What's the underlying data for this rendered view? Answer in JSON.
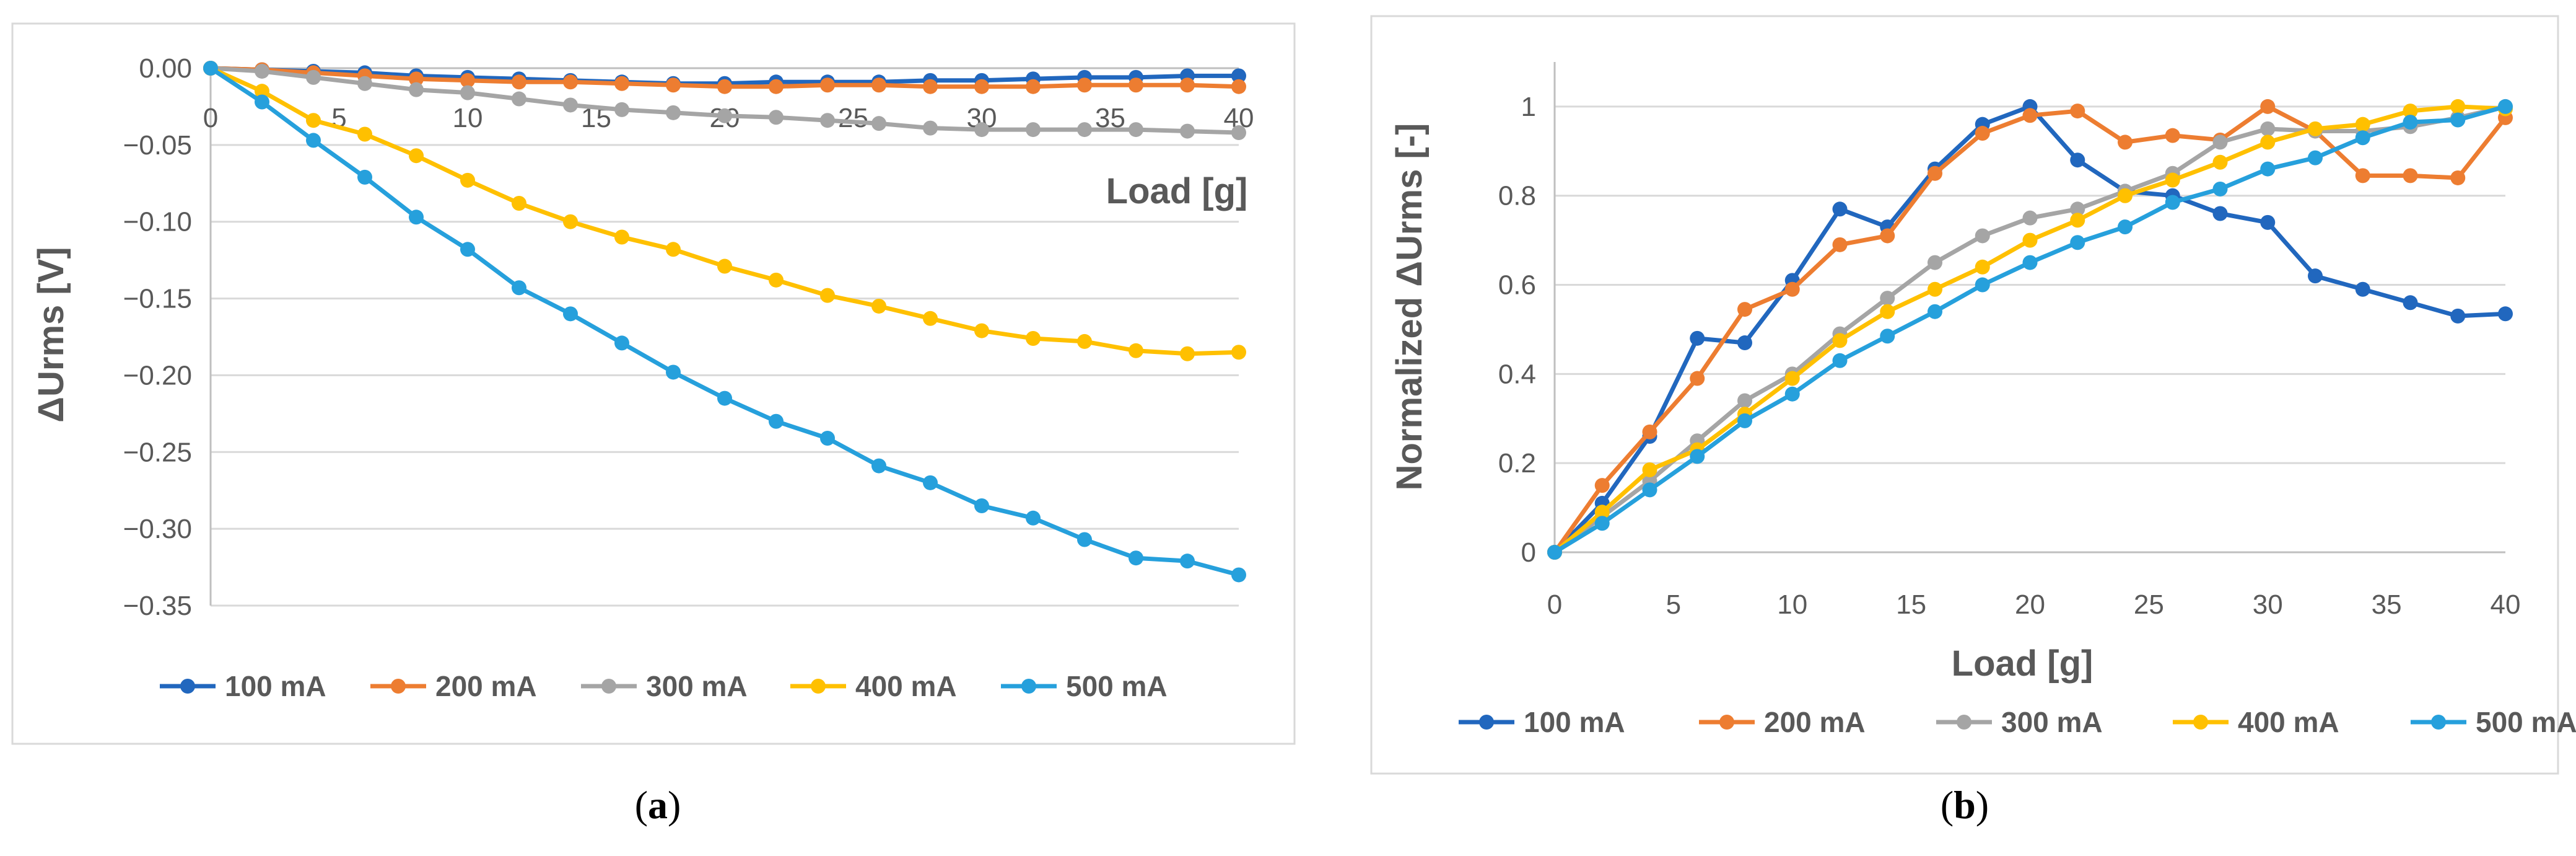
{
  "colors": {
    "100 mA": "#2167be",
    "200 mA": "#ed7d31",
    "300 mA": "#a5a5a5",
    "400 mA": "#ffc000",
    "500 mA": "#26a0dc"
  },
  "chart_data": [
    {
      "type": "line",
      "caption": "a",
      "title": "",
      "xlabel": "Load [g]",
      "ylabel": "ΔUrms [V]",
      "xlim": [
        0,
        40
      ],
      "ylim": [
        -0.35,
        0
      ],
      "x_ticks": [
        "0",
        "5",
        "10",
        "15",
        "20",
        "25",
        "30",
        "35",
        "40"
      ],
      "y_ticks": [
        "0.00",
        "−0.05",
        "−0.10",
        "−0.15",
        "−0.20",
        "−0.25",
        "−0.30",
        "−0.35"
      ],
      "grid": true,
      "legend": "bottom",
      "x": [
        0,
        2,
        4,
        6,
        8,
        10,
        12,
        14,
        16,
        18,
        20,
        22,
        24,
        26,
        28,
        30,
        32,
        34,
        36,
        38,
        40
      ],
      "series": [
        {
          "name": "100 mA",
          "values": [
            0,
            -0.001,
            -0.002,
            -0.003,
            -0.005,
            -0.006,
            -0.007,
            -0.008,
            -0.009,
            -0.01,
            -0.01,
            -0.009,
            -0.009,
            -0.009,
            -0.008,
            -0.008,
            -0.007,
            -0.006,
            -0.006,
            -0.005,
            -0.005
          ]
        },
        {
          "name": "200 mA",
          "values": [
            0,
            -0.001,
            -0.003,
            -0.005,
            -0.007,
            -0.008,
            -0.009,
            -0.009,
            -0.01,
            -0.011,
            -0.012,
            -0.012,
            -0.011,
            -0.011,
            -0.012,
            -0.012,
            -0.012,
            -0.011,
            -0.011,
            -0.011,
            -0.012
          ]
        },
        {
          "name": "300 mA",
          "values": [
            0,
            -0.002,
            -0.006,
            -0.01,
            -0.014,
            -0.016,
            -0.02,
            -0.024,
            -0.027,
            -0.029,
            -0.031,
            -0.032,
            -0.034,
            -0.036,
            -0.039,
            -0.04,
            -0.04,
            -0.04,
            -0.04,
            -0.041,
            -0.042
          ]
        },
        {
          "name": "400 mA",
          "values": [
            0,
            -0.015,
            -0.034,
            -0.043,
            -0.057,
            -0.073,
            -0.088,
            -0.1,
            -0.11,
            -0.118,
            -0.129,
            -0.138,
            -0.148,
            -0.155,
            -0.163,
            -0.171,
            -0.176,
            -0.178,
            -0.184,
            -0.186,
            -0.185
          ]
        },
        {
          "name": "500 mA",
          "values": [
            0,
            -0.022,
            -0.047,
            -0.071,
            -0.097,
            -0.118,
            -0.143,
            -0.16,
            -0.179,
            -0.198,
            -0.215,
            -0.23,
            -0.241,
            -0.259,
            -0.27,
            -0.285,
            -0.293,
            -0.307,
            -0.319,
            -0.321,
            -0.33
          ]
        }
      ]
    },
    {
      "type": "line",
      "caption": "b",
      "title": "",
      "xlabel": "Load [g]",
      "ylabel": "Normalized ΔUrms [-]",
      "xlim": [
        0,
        40
      ],
      "ylim": [
        0,
        1.1
      ],
      "x_ticks": [
        "0",
        "5",
        "10",
        "15",
        "20",
        "25",
        "30",
        "35",
        "40"
      ],
      "y_ticks": [
        "0",
        "0.2",
        "0.4",
        "0.6",
        "0.8",
        "1"
      ],
      "grid": true,
      "legend": "bottom",
      "x": [
        0,
        2,
        4,
        6,
        8,
        10,
        12,
        14,
        16,
        18,
        20,
        22,
        24,
        26,
        28,
        30,
        32,
        34,
        36,
        38,
        40
      ],
      "series": [
        {
          "name": "100 mA",
          "values": [
            0,
            0.11,
            0.26,
            0.48,
            0.47,
            0.61,
            0.77,
            0.73,
            0.86,
            0.96,
            1.0,
            0.88,
            0.81,
            0.8,
            0.76,
            0.74,
            0.62,
            0.59,
            0.56,
            0.53,
            0.535
          ]
        },
        {
          "name": "200 mA",
          "values": [
            0,
            0.15,
            0.27,
            0.39,
            0.545,
            0.59,
            0.69,
            0.71,
            0.85,
            0.94,
            0.98,
            0.99,
            0.92,
            0.935,
            0.925,
            1.0,
            0.945,
            0.845,
            0.845,
            0.84,
            0.975
          ]
        },
        {
          "name": "300 mA",
          "values": [
            0,
            0.08,
            0.16,
            0.25,
            0.34,
            0.4,
            0.49,
            0.57,
            0.65,
            0.71,
            0.75,
            0.77,
            0.81,
            0.85,
            0.92,
            0.95,
            0.945,
            0.945,
            0.955,
            0.975,
            1.0
          ]
        },
        {
          "name": "400 mA",
          "values": [
            0,
            0.09,
            0.185,
            0.23,
            0.31,
            0.39,
            0.475,
            0.54,
            0.59,
            0.64,
            0.7,
            0.745,
            0.8,
            0.835,
            0.875,
            0.92,
            0.95,
            0.96,
            0.99,
            1.0,
            0.995
          ]
        },
        {
          "name": "500 mA",
          "values": [
            0,
            0.065,
            0.14,
            0.215,
            0.295,
            0.355,
            0.43,
            0.485,
            0.54,
            0.6,
            0.65,
            0.695,
            0.73,
            0.785,
            0.815,
            0.86,
            0.885,
            0.93,
            0.965,
            0.97,
            1.0
          ]
        }
      ]
    }
  ]
}
